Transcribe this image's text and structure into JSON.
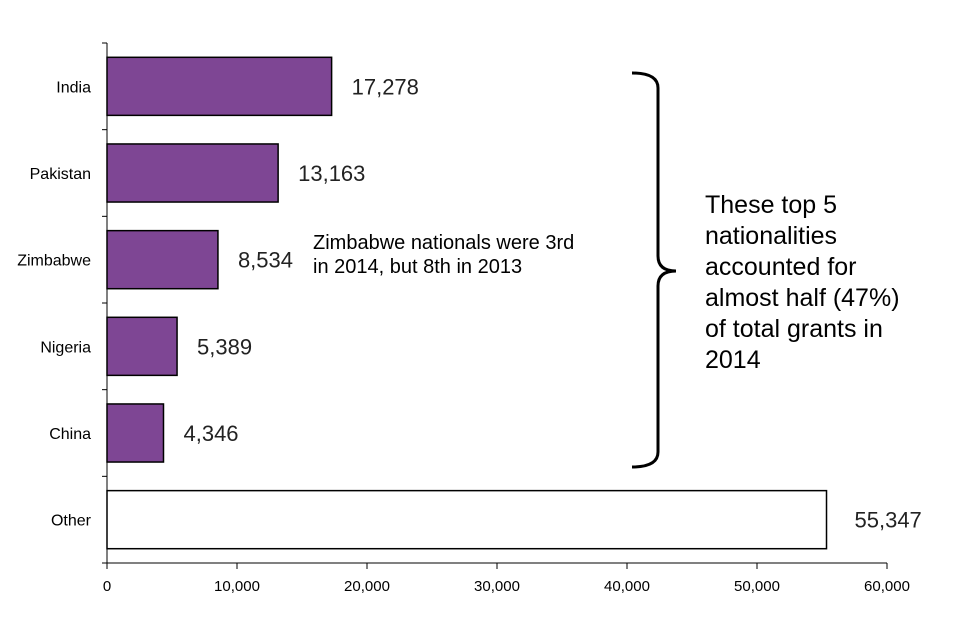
{
  "chart_data": {
    "type": "bar",
    "orientation": "horizontal",
    "title": "",
    "xlabel": "",
    "ylabel": "",
    "categories": [
      "India",
      "Pakistan",
      "Zimbabwe",
      "Nigeria",
      "China",
      "Other"
    ],
    "values": [
      17278,
      13163,
      8534,
      5389,
      4346,
      55347
    ],
    "value_labels": [
      "17,278",
      "13,163",
      "8,534",
      "5,389",
      "4,346",
      "55,347"
    ],
    "xlim": [
      0,
      60000
    ],
    "x_ticks": [
      0,
      10000,
      20000,
      30000,
      40000,
      50000,
      60000
    ],
    "x_tick_labels": [
      "0",
      "10,000",
      "20,000",
      "30,000",
      "40,000",
      "50,000",
      "60,000"
    ],
    "grid": false,
    "legend": "none",
    "colors": {
      "highlight": "#7E4694",
      "other": "#FFFFFF",
      "outline": "#000000"
    },
    "annotations": {
      "zimbabwe_note": "Zimbabwe nationals were 3rd in 2014, but 8th in 2013",
      "top5_note": "These top 5 nationalities accounted for almost half (47%) of total grants in 2014",
      "bracket": "right-curly-brace spanning India to China"
    }
  }
}
